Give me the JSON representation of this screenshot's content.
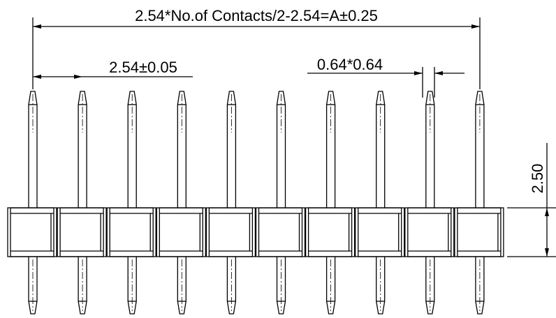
{
  "dimensions": {
    "overall": "2.54*No.of Contacts/2-2.54=A±0.25",
    "pitch": "2.54±0.05",
    "pin_size": "0.64*0.64",
    "height": "2.50"
  }
}
